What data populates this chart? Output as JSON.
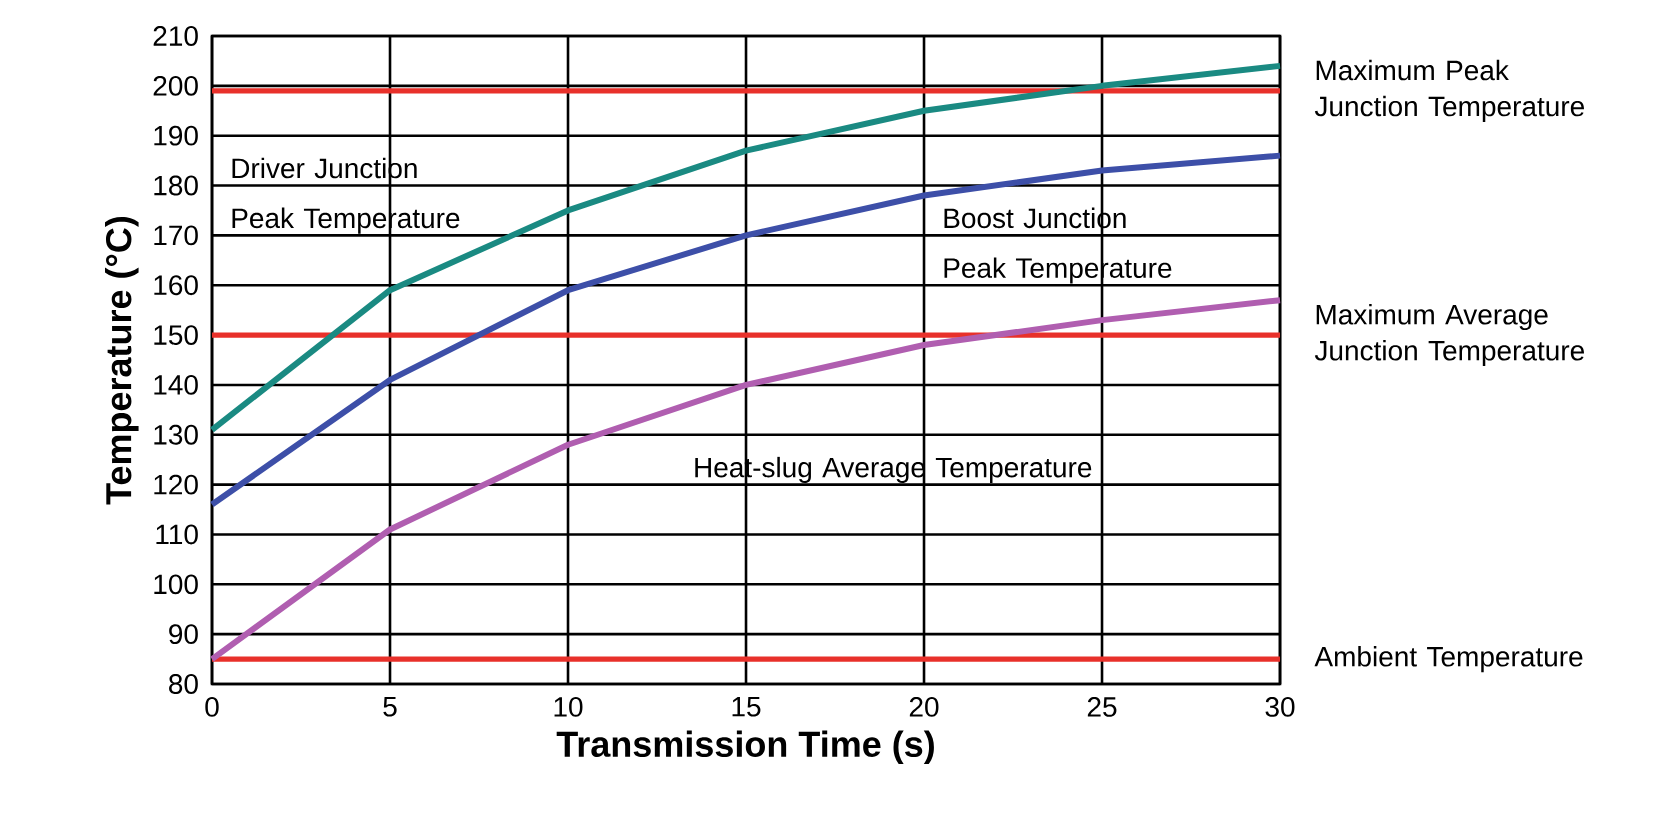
{
  "chart_data": {
    "type": "line",
    "xlabel": "Transmission Time (s)",
    "ylabel": "Temperature (°C)",
    "x": [
      0,
      5,
      10,
      15,
      20,
      25,
      30
    ],
    "series": [
      {
        "name": "Driver Junction Peak Temperature",
        "color": "#1a8a82",
        "values": [
          131,
          159,
          175,
          187,
          195,
          200,
          204
        ]
      },
      {
        "name": "Boost Junction Peak Temperature",
        "color": "#3d4fa8",
        "values": [
          116,
          141,
          159,
          170,
          178,
          183,
          186
        ]
      },
      {
        "name": "Heat-slug Average Temperature",
        "color": "#b05eb0",
        "values": [
          85,
          111,
          128,
          140,
          148,
          153,
          157
        ]
      }
    ],
    "ref_lines": [
      {
        "axis": "y",
        "value": 199,
        "label": "Maximum Peak Junction Temperature",
        "color": "#e8302a"
      },
      {
        "axis": "y",
        "value": 150,
        "label": "Maximum Average Junction Temperature",
        "color": "#e8302a"
      },
      {
        "axis": "y",
        "value": 85,
        "label": "Ambient Temperature",
        "color": "#e8302a"
      }
    ],
    "xlim": [
      0,
      30
    ],
    "ylim": [
      80,
      210
    ],
    "xticks": [
      0,
      5,
      10,
      15,
      20,
      25,
      30
    ],
    "yticks": [
      80,
      90,
      100,
      110,
      120,
      130,
      140,
      150,
      160,
      170,
      180,
      190,
      200,
      210
    ],
    "grid": true,
    "marker": "none"
  }
}
